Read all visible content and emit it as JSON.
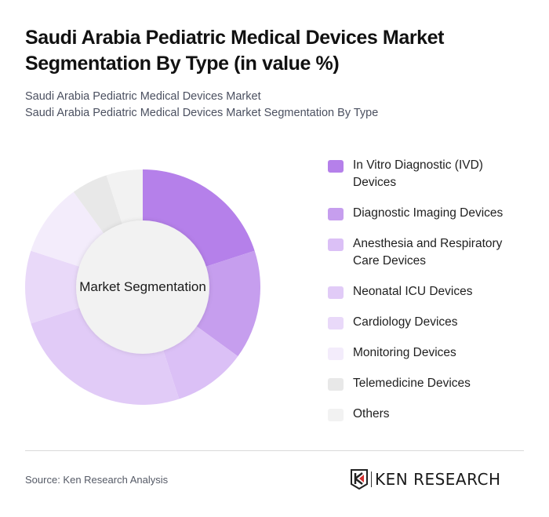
{
  "header": {
    "title": "Saudi Arabia Pediatric Medical Devices Market Segmentation By Type (in value %)",
    "subtitle_line1": "Saudi Arabia Pediatric Medical Devices Market",
    "subtitle_line2": "Saudi Arabia Pediatric Medical Devices Market Segmentation By Type"
  },
  "chart": {
    "center_label": "Market Segmentation"
  },
  "legend": [
    {
      "label": "In Vitro Diagnostic (IVD) Devices",
      "color": "#b580ea"
    },
    {
      "label": "Diagnostic Imaging Devices",
      "color": "#c69eee"
    },
    {
      "label": "Anesthesia and Respiratory Care Devices",
      "color": "#dbc0f6"
    },
    {
      "label": "Neonatal ICU Devices",
      "color": "#e1cbf7"
    },
    {
      "label": "Cardiology Devices",
      "color": "#e9d9f9"
    },
    {
      "label": "Monitoring Devices",
      "color": "#f3ecfb"
    },
    {
      "label": "Telemedicine Devices",
      "color": "#e8e8e8"
    },
    {
      "label": "Others",
      "color": "#f2f2f2"
    }
  ],
  "footer": {
    "source": "Source: Ken Research Analysis",
    "logo_text": "KEN RESEARCH"
  },
  "chart_data": {
    "type": "pie",
    "subtype": "donut",
    "title": "Saudi Arabia Pediatric Medical Devices Market Segmentation By Type (in value %)",
    "center_label": "Market Segmentation",
    "categories": [
      "In Vitro Diagnostic (IVD) Devices",
      "Diagnostic Imaging Devices",
      "Anesthesia and Respiratory Care Devices",
      "Neonatal ICU Devices",
      "Cardiology Devices",
      "Monitoring Devices",
      "Telemedicine Devices",
      "Others"
    ],
    "values": [
      20,
      15,
      10,
      25,
      10,
      10,
      5,
      5
    ],
    "colors": [
      "#b580ea",
      "#c69eee",
      "#dbc0f6",
      "#e1cbf7",
      "#e9d9f9",
      "#f3ecfb",
      "#e8e8e8",
      "#f2f2f2"
    ],
    "legend_position": "right",
    "unit": "%"
  }
}
